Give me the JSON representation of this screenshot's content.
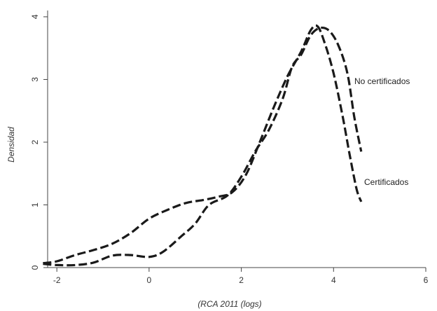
{
  "chart_data": {
    "type": "line",
    "title": "",
    "xlabel": "(RCA 2011 (logs)",
    "ylabel": "Densidad",
    "xlim": [
      -2.2,
      6
    ],
    "ylim": [
      0,
      4.1
    ],
    "xticks": [
      -2,
      0,
      2,
      4,
      6
    ],
    "yticks": [
      0,
      1,
      2,
      3,
      4
    ],
    "xtick_labels": [
      "-2",
      "0",
      "2",
      "4",
      "6"
    ],
    "ytick_labels": [
      "0",
      "1",
      "2",
      "3",
      "4"
    ],
    "grid": false,
    "legend": "none; series labelled directly at line ends",
    "line_color": "#1a1a1a",
    "series": [
      {
        "name": "No certificados",
        "style": "dashed",
        "points": [
          [
            -2.3,
            0.06
          ],
          [
            -2.0,
            0.04
          ],
          [
            -1.6,
            0.04
          ],
          [
            -1.2,
            0.08
          ],
          [
            -0.8,
            0.19
          ],
          [
            -0.4,
            0.2
          ],
          [
            0.0,
            0.17
          ],
          [
            0.3,
            0.25
          ],
          [
            0.7,
            0.5
          ],
          [
            1.0,
            0.7
          ],
          [
            1.3,
            1.0
          ],
          [
            1.7,
            1.15
          ],
          [
            2.0,
            1.45
          ],
          [
            2.3,
            1.85
          ],
          [
            2.6,
            2.2
          ],
          [
            2.9,
            2.7
          ],
          [
            3.1,
            3.2
          ],
          [
            3.3,
            3.4
          ],
          [
            3.5,
            3.7
          ],
          [
            3.7,
            3.82
          ],
          [
            3.9,
            3.78
          ],
          [
            4.1,
            3.55
          ],
          [
            4.3,
            3.1
          ],
          [
            4.45,
            2.4
          ],
          [
            4.6,
            1.85
          ]
        ]
      },
      {
        "name": "Certificados",
        "style": "dashed",
        "points": [
          [
            -2.3,
            0.07
          ],
          [
            -2.0,
            0.1
          ],
          [
            -1.6,
            0.2
          ],
          [
            -1.2,
            0.28
          ],
          [
            -0.8,
            0.38
          ],
          [
            -0.4,
            0.55
          ],
          [
            0.0,
            0.78
          ],
          [
            0.4,
            0.92
          ],
          [
            0.8,
            1.03
          ],
          [
            1.2,
            1.08
          ],
          [
            1.5,
            1.13
          ],
          [
            1.8,
            1.2
          ],
          [
            2.1,
            1.48
          ],
          [
            2.4,
            2.0
          ],
          [
            2.7,
            2.55
          ],
          [
            3.0,
            3.05
          ],
          [
            3.3,
            3.45
          ],
          [
            3.5,
            3.78
          ],
          [
            3.65,
            3.85
          ],
          [
            3.8,
            3.6
          ],
          [
            4.0,
            3.1
          ],
          [
            4.2,
            2.4
          ],
          [
            4.35,
            1.8
          ],
          [
            4.5,
            1.25
          ],
          [
            4.6,
            1.05
          ]
        ]
      }
    ]
  }
}
